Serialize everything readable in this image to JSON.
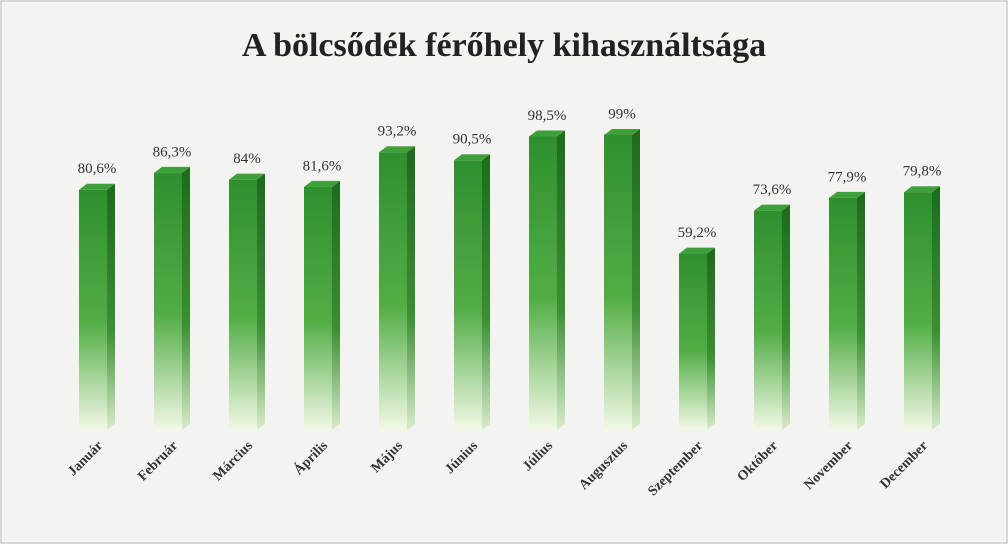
{
  "chart_data": {
    "type": "bar",
    "title": "A bölcsődék férőhely kihasználtsága",
    "categories": [
      "Január",
      "Február",
      "Március",
      "Április",
      "Május",
      "Június",
      "Július",
      "Augusztus",
      "Szeptember",
      "Október",
      "November",
      "December"
    ],
    "values": [
      80.6,
      86.3,
      84,
      81.6,
      93.2,
      90.5,
      98.5,
      99,
      59.2,
      73.6,
      77.9,
      79.8
    ],
    "value_labels": [
      "80,6%",
      "86,3%",
      "84%",
      "81,6%",
      "93,2%",
      "90,5%",
      "98,5%",
      "99%",
      "59,2%",
      "73,6%",
      "77,9%",
      "79,8%"
    ],
    "color": "#2f8f2f",
    "ylim": [
      0,
      100
    ]
  }
}
